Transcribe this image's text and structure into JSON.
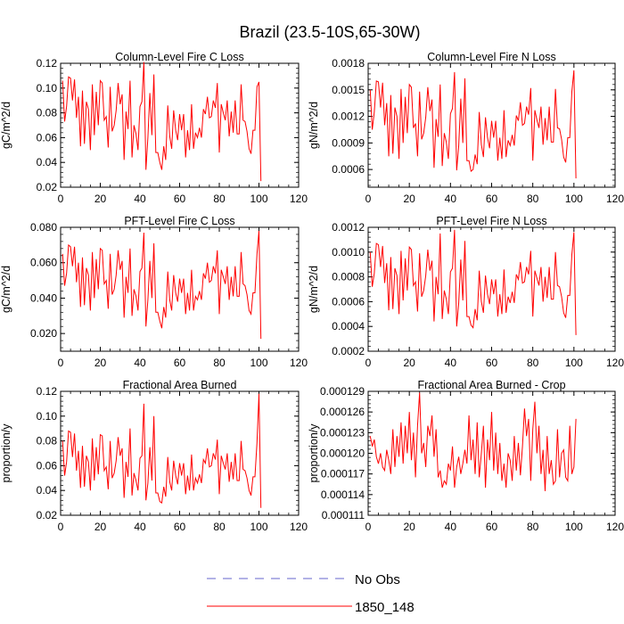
{
  "title": "Brazil (23.5-10S,65-30W)",
  "colors": {
    "series": "#ff0000",
    "no_obs": "#6666cc",
    "axis": "#000000"
  },
  "legend": [
    {
      "label": "No Obs",
      "style": "dashed",
      "color": "#6666cc"
    },
    {
      "label": "1850_148",
      "style": "solid",
      "color": "#ff0000"
    }
  ],
  "chart_data": [
    {
      "type": "line",
      "title": "Column-Level Fire C Loss",
      "ylabel": "gC/m^2/d",
      "xlim": [
        0,
        120
      ],
      "ylim": [
        0.02,
        0.12
      ],
      "xticks": [
        0,
        20,
        40,
        60,
        80,
        100,
        120
      ],
      "xtick_labels": [
        "0",
        "20",
        "40",
        "60",
        "80",
        "100",
        "120"
      ],
      "yticks": [
        0.02,
        0.04,
        0.06,
        0.08,
        0.1,
        0.12
      ],
      "ytick_labels": [
        "0.02",
        "0.04",
        "0.06",
        "0.08",
        "0.10",
        "0.12"
      ],
      "series": [
        {
          "name": "1850_148",
          "x_start": 1,
          "values": [
            0.106,
            0.073,
            0.085,
            0.109,
            0.108,
            0.09,
            0.107,
            0.076,
            0.093,
            0.053,
            0.098,
            0.055,
            0.089,
            0.083,
            0.05,
            0.103,
            0.062,
            0.097,
            0.07,
            0.106,
            0.104,
            0.074,
            0.077,
            0.052,
            0.101,
            0.065,
            0.07,
            0.082,
            0.104,
            0.087,
            0.095,
            0.042,
            0.081,
            0.067,
            0.106,
            0.044,
            0.07,
            0.063,
            0.05,
            0.085,
            0.089,
            0.121,
            0.034,
            0.06,
            0.096,
            0.062,
            0.111,
            0.048,
            0.048,
            0.04,
            0.034,
            0.053,
            0.042,
            0.086,
            0.061,
            0.051,
            0.082,
            0.066,
            0.058,
            0.079,
            0.066,
            0.079,
            0.044,
            0.066,
            0.05,
            0.087,
            0.051,
            0.064,
            0.06,
            0.068,
            0.06,
            0.083,
            0.079,
            0.093,
            0.076,
            0.077,
            0.09,
            0.084,
            0.104,
            0.048,
            0.087,
            0.08,
            0.074,
            0.09,
            0.061,
            0.081,
            0.064,
            0.09,
            0.063,
            0.063,
            0.103,
            0.074,
            0.073,
            0.065,
            0.051,
            0.047,
            0.066,
            0.066,
            0.101,
            0.105,
            0.025
          ]
        }
      ]
    },
    {
      "type": "line",
      "title": "Column-Level Fire N Loss",
      "ylabel": "gN/m^2/d",
      "xlim": [
        0,
        120
      ],
      "ylim": [
        0.0004,
        0.0018
      ],
      "xticks": [
        0,
        20,
        40,
        60,
        80,
        100,
        120
      ],
      "xtick_labels": [
        "0",
        "20",
        "40",
        "60",
        "80",
        "100",
        "120"
      ],
      "yticks": [
        0.0006,
        0.0009,
        0.0012,
        0.0015,
        0.0018
      ],
      "ytick_labels": [
        "0.0006",
        "0.0009",
        "0.0012",
        "0.0015",
        "0.0018"
      ],
      "series": [
        {
          "name": "1850_148",
          "x_start": 1,
          "values": [
            0.0015,
            0.00105,
            0.00125,
            0.0016,
            0.00159,
            0.0013,
            0.00158,
            0.0011,
            0.00135,
            0.00075,
            0.00144,
            0.00078,
            0.0013,
            0.0012,
            0.00072,
            0.00151,
            0.0009,
            0.00142,
            0.00101,
            0.00156,
            0.00153,
            0.00107,
            0.00112,
            0.00075,
            0.00148,
            0.00094,
            0.00101,
            0.00119,
            0.00153,
            0.00126,
            0.00139,
            0.00062,
            0.00117,
            0.00097,
            0.00156,
            0.00064,
            0.00101,
            0.00091,
            0.00072,
            0.00123,
            0.00129,
            0.0017,
            0.00059,
            0.00087,
            0.0014,
            0.0009,
            0.00163,
            0.0007,
            0.0007,
            0.00058,
            0.0006,
            0.00077,
            0.00066,
            0.00125,
            0.00088,
            0.00074,
            0.00119,
            0.00096,
            0.00084,
            0.00115,
            0.00096,
            0.00115,
            0.0007,
            0.00096,
            0.00072,
            0.00127,
            0.00074,
            0.00093,
            0.00087,
            0.00099,
            0.00087,
            0.00121,
            0.00115,
            0.00136,
            0.0011,
            0.00112,
            0.00131,
            0.00122,
            0.00152,
            0.0007,
            0.00127,
            0.00116,
            0.00107,
            0.00131,
            0.00088,
            0.00118,
            0.00093,
            0.00131,
            0.00091,
            0.00091,
            0.00151,
            0.00107,
            0.00106,
            0.00094,
            0.00074,
            0.00068,
            0.00096,
            0.00096,
            0.00148,
            0.00172,
            0.0005
          ]
        }
      ]
    },
    {
      "type": "line",
      "title": "PFT-Level Fire C Loss",
      "ylabel": "gC/m^2/d",
      "xlim": [
        0,
        120
      ],
      "ylim": [
        0.01,
        0.08
      ],
      "xticks": [
        0,
        20,
        40,
        60,
        80,
        100,
        120
      ],
      "xtick_labels": [
        "0",
        "20",
        "40",
        "60",
        "80",
        "100",
        "120"
      ],
      "yticks": [
        0.02,
        0.04,
        0.06,
        0.08
      ],
      "ytick_labels": [
        "0.020",
        "0.040",
        "0.060",
        "0.080"
      ],
      "series": [
        {
          "name": "1850_148",
          "x_start": 1,
          "values": [
            0.065,
            0.047,
            0.054,
            0.07,
            0.069,
            0.058,
            0.069,
            0.049,
            0.06,
            0.035,
            0.063,
            0.036,
            0.057,
            0.053,
            0.033,
            0.066,
            0.04,
            0.062,
            0.045,
            0.068,
            0.067,
            0.048,
            0.05,
            0.034,
            0.065,
            0.042,
            0.045,
            0.053,
            0.067,
            0.056,
            0.061,
            0.029,
            0.052,
            0.043,
            0.068,
            0.03,
            0.045,
            0.041,
            0.033,
            0.055,
            0.057,
            0.077,
            0.024,
            0.039,
            0.061,
            0.04,
            0.071,
            0.032,
            0.032,
            0.027,
            0.023,
            0.035,
            0.029,
            0.055,
            0.039,
            0.033,
            0.053,
            0.043,
            0.038,
            0.051,
            0.043,
            0.051,
            0.031,
            0.043,
            0.033,
            0.056,
            0.033,
            0.041,
            0.039,
            0.044,
            0.039,
            0.054,
            0.051,
            0.06,
            0.049,
            0.05,
            0.058,
            0.054,
            0.067,
            0.031,
            0.056,
            0.052,
            0.048,
            0.058,
            0.039,
            0.052,
            0.041,
            0.058,
            0.041,
            0.041,
            0.066,
            0.048,
            0.047,
            0.042,
            0.033,
            0.031,
            0.043,
            0.043,
            0.065,
            0.078,
            0.017
          ]
        }
      ]
    },
    {
      "type": "line",
      "title": "PFT-Level Fire N Loss",
      "ylabel": "gN/m^2/d",
      "xlim": [
        0,
        120
      ],
      "ylim": [
        0.0002,
        0.0012
      ],
      "xticks": [
        0,
        20,
        40,
        60,
        80,
        100,
        120
      ],
      "xtick_labels": [
        "0",
        "20",
        "40",
        "60",
        "80",
        "100",
        "120"
      ],
      "yticks": [
        0.0002,
        0.0004,
        0.0006,
        0.0008,
        0.001,
        0.0012
      ],
      "ytick_labels": [
        "0.0002",
        "0.0004",
        "0.0006",
        "0.0008",
        "0.0010",
        "0.0012"
      ],
      "series": [
        {
          "name": "1850_148",
          "x_start": 1,
          "values": [
            0.001,
            0.00072,
            0.00083,
            0.00107,
            0.00106,
            0.00088,
            0.00105,
            0.00075,
            0.00091,
            0.00053,
            0.00096,
            0.00054,
            0.00087,
            0.00081,
            0.0005,
            0.00101,
            0.00061,
            0.00095,
            0.00069,
            0.00104,
            0.00102,
            0.00073,
            0.00076,
            0.00052,
            0.00099,
            0.00064,
            0.00069,
            0.00081,
            0.00102,
            0.00085,
            0.00093,
            0.00044,
            0.0008,
            0.00066,
            0.00115,
            0.00046,
            0.00069,
            0.00062,
            0.0005,
            0.00084,
            0.00087,
            0.00118,
            0.0004,
            0.00059,
            0.00094,
            0.00061,
            0.00109,
            0.00048,
            0.00048,
            0.00041,
            0.00039,
            0.00054,
            0.00045,
            0.00085,
            0.0006,
            0.00051,
            0.00081,
            0.00066,
            0.00058,
            0.00078,
            0.00066,
            0.00078,
            0.00048,
            0.00066,
            0.0005,
            0.00086,
            0.00051,
            0.00064,
            0.00059,
            0.00068,
            0.00059,
            0.00082,
            0.00078,
            0.00092,
            0.00075,
            0.00076,
            0.00088,
            0.00082,
            0.00101,
            0.00048,
            0.00085,
            0.00079,
            0.00073,
            0.00088,
            0.0006,
            0.0008,
            0.00063,
            0.00088,
            0.00062,
            0.00062,
            0.001,
            0.00073,
            0.00072,
            0.00064,
            0.00051,
            0.00047,
            0.00065,
            0.00065,
            0.00098,
            0.00116,
            0.00033
          ]
        }
      ]
    },
    {
      "type": "line",
      "title": "Fractional Area Burned",
      "ylabel": "proportion/y",
      "xlim": [
        0,
        120
      ],
      "ylim": [
        0.02,
        0.12
      ],
      "xticks": [
        0,
        20,
        40,
        60,
        80,
        100,
        120
      ],
      "xtick_labels": [
        "0",
        "20",
        "40",
        "60",
        "80",
        "100",
        "120"
      ],
      "yticks": [
        0.02,
        0.04,
        0.06,
        0.08,
        0.1,
        0.12
      ],
      "ytick_labels": [
        "0.02",
        "0.04",
        "0.06",
        "0.08",
        "0.10",
        "0.12"
      ],
      "series": [
        {
          "name": "1850_148",
          "x_start": 1,
          "values": [
            0.08,
            0.052,
            0.063,
            0.088,
            0.087,
            0.067,
            0.086,
            0.056,
            0.072,
            0.042,
            0.076,
            0.043,
            0.068,
            0.063,
            0.04,
            0.082,
            0.048,
            0.075,
            0.053,
            0.085,
            0.084,
            0.056,
            0.059,
            0.041,
            0.08,
            0.05,
            0.054,
            0.064,
            0.083,
            0.068,
            0.074,
            0.034,
            0.063,
            0.051,
            0.09,
            0.036,
            0.054,
            0.048,
            0.04,
            0.066,
            0.068,
            0.11,
            0.032,
            0.046,
            0.075,
            0.048,
            0.1,
            0.038,
            0.038,
            0.031,
            0.03,
            0.043,
            0.035,
            0.067,
            0.047,
            0.04,
            0.064,
            0.052,
            0.045,
            0.062,
            0.052,
            0.062,
            0.037,
            0.052,
            0.04,
            0.069,
            0.04,
            0.05,
            0.046,
            0.053,
            0.046,
            0.065,
            0.062,
            0.074,
            0.059,
            0.06,
            0.07,
            0.065,
            0.081,
            0.037,
            0.068,
            0.062,
            0.057,
            0.07,
            0.047,
            0.063,
            0.049,
            0.07,
            0.048,
            0.048,
            0.08,
            0.057,
            0.056,
            0.05,
            0.04,
            0.036,
            0.051,
            0.051,
            0.079,
            0.118,
            0.026
          ]
        }
      ]
    },
    {
      "type": "line",
      "title": "Fractional Area Burned - Crop",
      "ylabel": "proportion/y",
      "xlim": [
        0,
        120
      ],
      "ylim": [
        0.000111,
        0.000129
      ],
      "xticks": [
        0,
        20,
        40,
        60,
        80,
        100,
        120
      ],
      "xtick_labels": [
        "0",
        "20",
        "40",
        "60",
        "80",
        "100",
        "120"
      ],
      "yticks": [
        0.000111,
        0.000114,
        0.000117,
        0.00012,
        0.000123,
        0.000126,
        0.000129
      ],
      "ytick_labels": [
        "0.000111",
        "0.000114",
        "0.000117",
        "0.000120",
        "0.000123",
        "0.000126",
        "0.000129"
      ],
      "series": [
        {
          "name": "1850_148",
          "x_start": 1,
          "values": [
            0.0001225,
            0.000121,
            0.000122,
            0.0001195,
            0.0001185,
            0.00012,
            0.000118,
            0.0001175,
            0.0001205,
            0.000119,
            0.000117,
            0.0001235,
            0.000118,
            0.0001225,
            0.0001195,
            0.0001245,
            0.0001185,
            0.000124,
            0.00012,
            0.000126,
            0.000119,
            0.000123,
            0.0001165,
            0.000124,
            0.0001288,
            0.00012,
            0.0001215,
            0.000118,
            0.000124,
            0.0001225,
            0.0001255,
            0.0001195,
            0.0001235,
            0.0001165,
            0.0001175,
            0.000115,
            0.000116,
            0.0001155,
            0.0001185,
            0.0001175,
            0.000121,
            0.000115,
            0.000118,
            0.0001195,
            0.000117,
            0.0001185,
            0.0001205,
            0.0001185,
            0.0001255,
            0.000119,
            0.000122,
            0.000117,
            0.0001245,
            0.0001165,
            0.00012,
            0.000124,
            0.000115,
            0.000122,
            0.000119,
            0.000126,
            0.0001175,
            0.000123,
            0.000117,
            0.0001215,
            0.000116,
            0.0001185,
            0.000115,
            0.00012,
            0.000119,
            0.000116,
            0.0001225,
            0.0001175,
            0.0001215,
            0.0001168,
            0.000121,
            0.0001265,
            0.0001225,
            0.000125,
            0.000116,
            0.0001235,
            0.0001275,
            0.00012,
            0.000124,
            0.000117,
            0.0001205,
            0.0001145,
            0.0001225,
            0.000117,
            0.000119,
            0.0001155,
            0.000116,
            0.0001235,
            0.0001165,
            0.00012,
            0.0001205,
            0.0001165,
            0.000116,
            0.000124,
            0.000117,
            0.000118,
            0.000125
          ]
        }
      ]
    }
  ]
}
